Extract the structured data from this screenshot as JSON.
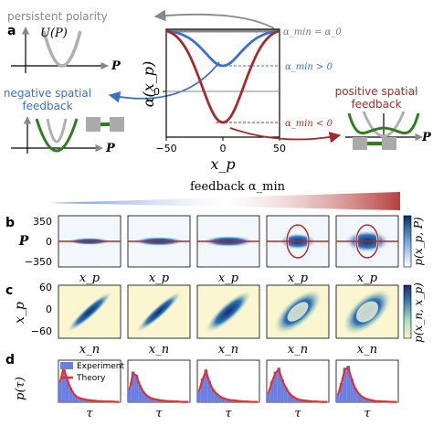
{
  "panels": {
    "a": "a",
    "b": "b",
    "c": "c",
    "d": "d"
  },
  "panel_a": {
    "persistent_label": "persistent polarity",
    "potential_axis_label": "U(P)",
    "potential_p_label": "P",
    "negative_label_line1": "negative spatial",
    "negative_label_line2": "feedback",
    "positive_label_line1": "positive spatial",
    "positive_label_line2": "feedback",
    "neg_color": "#3a6fd0",
    "pos_color": "#a52a2a",
    "grey_color": "#b0b0b0",
    "green_color": "#2e7d1f",
    "main_plot": {
      "ylabel": "α(x_p)",
      "xlabel": "x_p",
      "xticks": [
        "−50",
        "0",
        "50"
      ],
      "yticks": [
        "0"
      ],
      "legend_const": "α_min = α_0",
      "legend_pos": "α_min > 0",
      "legend_neg": "α_min < 0"
    }
  },
  "feedback_bar": {
    "label": "feedback α_min",
    "left_color": "#3a6fd0",
    "right_color": "#b02a2a"
  },
  "panel_b": {
    "ylabel": "P",
    "yticks": [
      "350",
      "0",
      "−350"
    ],
    "xlabels": [
      "x_p",
      "x_p",
      "x_p",
      "x_p",
      "x_p"
    ],
    "colorbar_label": "p(x_p, P)",
    "cmap": "blue"
  },
  "panel_c": {
    "ylabel": "x_p",
    "yticks": [
      "60",
      "0",
      "−60"
    ],
    "xlabels": [
      "x_n",
      "x_n",
      "x_n",
      "x_n",
      "x_n"
    ],
    "colorbar_label": "p(x_n, x_p)",
    "cmap": "viridis"
  },
  "panel_d": {
    "ylabel": "p(τ)",
    "xlabels": [
      "τ",
      "τ",
      "τ",
      "τ",
      "τ"
    ],
    "legend_experiment": "Experiment",
    "legend_theory": "Theory",
    "hist_color": "#6a7fe0",
    "theory_color": "#e03030",
    "histograms": [
      [
        0.55,
        0.95,
        0.62,
        0.38,
        0.22,
        0.14,
        0.1,
        0.08,
        0.06,
        0.05,
        0.04,
        0.03,
        0.03,
        0.02,
        0.02,
        0.02,
        0.01,
        0.01
      ],
      [
        0.35,
        0.8,
        0.72,
        0.45,
        0.28,
        0.18,
        0.12,
        0.09,
        0.07,
        0.05,
        0.04,
        0.03,
        0.03,
        0.02,
        0.02,
        0.01,
        0.01,
        0.01
      ],
      [
        0.3,
        0.62,
        0.85,
        0.55,
        0.35,
        0.24,
        0.16,
        0.11,
        0.08,
        0.06,
        0.05,
        0.04,
        0.03,
        0.02,
        0.02,
        0.01,
        0.01,
        0.01
      ],
      [
        0.25,
        0.55,
        0.8,
        0.9,
        0.6,
        0.4,
        0.25,
        0.16,
        0.1,
        0.07,
        0.05,
        0.04,
        0.03,
        0.02,
        0.02,
        0.01,
        0.01,
        0.01
      ],
      [
        0.2,
        0.5,
        0.9,
        0.95,
        0.62,
        0.38,
        0.24,
        0.15,
        0.1,
        0.07,
        0.05,
        0.03,
        0.03,
        0.02,
        0.02,
        0.01,
        0.01,
        0.01
      ]
    ]
  }
}
